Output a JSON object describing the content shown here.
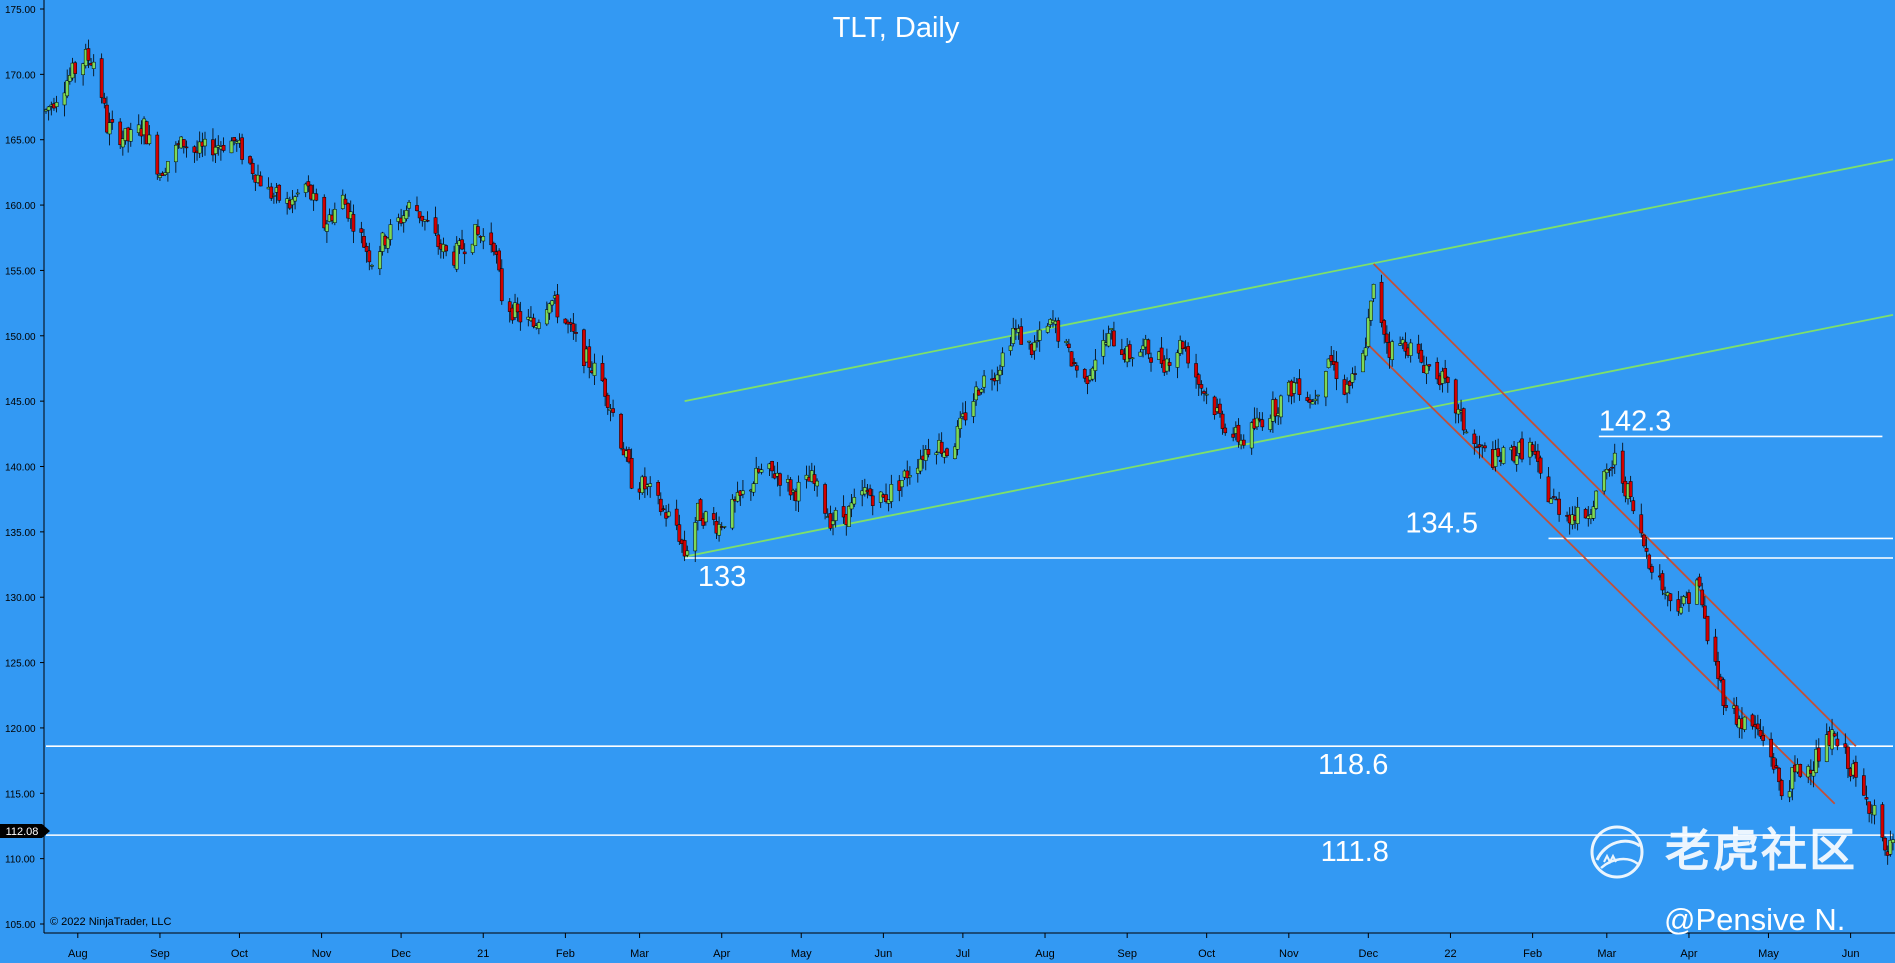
{
  "colors": {
    "background": "#3399f3",
    "axis": "#000000",
    "candle_up": "#7ed957",
    "candle_down": "#d10000",
    "channel_green": "#7ee06a",
    "channel_red": "#c0503a",
    "level_line": "#ffffff"
  },
  "chart_data": {
    "type": "candlestick",
    "title": "TLT, Daily",
    "copyright": "© 2022 NinjaTrader, LLC",
    "watermark": "老虎社区",
    "author": "@Pensive N.",
    "price_tag": "112.08",
    "ylim": [
      105,
      175
    ],
    "y_ticks": [
      "175.00",
      "170.00",
      "165.00",
      "160.00",
      "155.00",
      "150.00",
      "145.00",
      "140.00",
      "135.00",
      "130.00",
      "125.00",
      "120.00",
      "115.00",
      "110.00",
      "105.00"
    ],
    "x_ticks": [
      "Aug",
      "Sep",
      "Oct",
      "Nov",
      "Dec",
      "21",
      "Feb",
      "Mar",
      "Apr",
      "May",
      "Jun",
      "Jul",
      "Aug",
      "Sep",
      "Oct",
      "Nov",
      "Dec",
      "22",
      "Feb",
      "Mar",
      "Apr",
      "May",
      "Jun"
    ],
    "x_start": "2020-07-20",
    "x_end": "2022-06-17",
    "levels": [
      {
        "label": "133",
        "value": 133,
        "from": "2021-03-18",
        "to": "2022-06-17"
      },
      {
        "label": "134.5",
        "value": 134.5,
        "from": "2022-02-07",
        "to": "2022-06-17"
      },
      {
        "label": "142.3",
        "value": 142.3,
        "from": "2022-02-26",
        "to": "2022-06-13"
      },
      {
        "label": "118.6",
        "value": 118.6,
        "from": "2020-07-20",
        "to": "2022-06-17"
      },
      {
        "label": "111.8",
        "value": 111.8,
        "from": "2020-07-20",
        "to": "2022-06-17"
      }
    ],
    "trendlines": [
      {
        "color": "green",
        "from": {
          "date": "2021-03-18",
          "value": 145.0
        },
        "to": {
          "date": "2022-06-17",
          "value": 163.5
        }
      },
      {
        "color": "green",
        "from": {
          "date": "2021-03-18",
          "value": 133.1
        },
        "to": {
          "date": "2022-06-17",
          "value": 151.6
        }
      },
      {
        "color": "red",
        "from": {
          "date": "2021-12-03",
          "value": 155.5
        },
        "to": {
          "date": "2022-06-03",
          "value": 118.6
        }
      },
      {
        "color": "red",
        "from": {
          "date": "2021-11-30",
          "value": 149.5
        },
        "to": {
          "date": "2022-05-26",
          "value": 114.2
        }
      }
    ],
    "price_path": [
      [
        "2020-07-20",
        167.2
      ],
      [
        "2020-07-28",
        169.6
      ],
      [
        "2020-08-04",
        171.3
      ],
      [
        "2020-08-08",
        171.0
      ],
      [
        "2020-08-12",
        166.0
      ],
      [
        "2020-08-20",
        165.0
      ],
      [
        "2020-08-26",
        166.0
      ],
      [
        "2020-09-01",
        162.5
      ],
      [
        "2020-09-05",
        163.8
      ],
      [
        "2020-09-10",
        164.8
      ],
      [
        "2020-09-15",
        164.0
      ],
      [
        "2020-09-22",
        164.6
      ],
      [
        "2020-09-29",
        164.9
      ],
      [
        "2020-10-06",
        162.8
      ],
      [
        "2020-10-12",
        161.0
      ],
      [
        "2020-10-20",
        160.0
      ],
      [
        "2020-10-26",
        161.5
      ],
      [
        "2020-11-02",
        158.5
      ],
      [
        "2020-11-09",
        160.5
      ],
      [
        "2020-11-16",
        157.5
      ],
      [
        "2020-11-20",
        155.8
      ],
      [
        "2020-11-25",
        157.5
      ],
      [
        "2020-12-01",
        159.0
      ],
      [
        "2020-12-05",
        160.2
      ],
      [
        "2020-12-10",
        158.8
      ],
      [
        "2020-12-15",
        157.0
      ],
      [
        "2020-12-20",
        155.8
      ],
      [
        "2020-12-28",
        157.8
      ],
      [
        "2021-01-05",
        157.2
      ],
      [
        "2021-01-08",
        153.0
      ],
      [
        "2021-01-14",
        151.5
      ],
      [
        "2021-01-20",
        150.8
      ],
      [
        "2021-01-26",
        153.0
      ],
      [
        "2021-02-01",
        151.0
      ],
      [
        "2021-02-08",
        148.5
      ],
      [
        "2021-02-15",
        146.5
      ],
      [
        "2021-02-20",
        143.5
      ],
      [
        "2021-02-26",
        139.0
      ],
      [
        "2021-03-04",
        138.3
      ],
      [
        "2021-03-09",
        136.8
      ],
      [
        "2021-03-15",
        135.5
      ],
      [
        "2021-03-18",
        133.3
      ],
      [
        "2021-03-23",
        136.5
      ],
      [
        "2021-03-31",
        135.5
      ],
      [
        "2021-04-08",
        137.5
      ],
      [
        "2021-04-15",
        139.5
      ],
      [
        "2021-04-22",
        139.5
      ],
      [
        "2021-04-28",
        138.0
      ],
      [
        "2021-05-05",
        139.0
      ],
      [
        "2021-05-12",
        136.0
      ],
      [
        "2021-05-18",
        136.3
      ],
      [
        "2021-05-25",
        138.0
      ],
      [
        "2021-06-01",
        137.5
      ],
      [
        "2021-06-08",
        139.0
      ],
      [
        "2021-06-14",
        140.5
      ],
      [
        "2021-06-20",
        142.0
      ],
      [
        "2021-06-26",
        141.0
      ],
      [
        "2021-07-02",
        144.0
      ],
      [
        "2021-07-08",
        146.5
      ],
      [
        "2021-07-14",
        147.5
      ],
      [
        "2021-07-20",
        150.5
      ],
      [
        "2021-07-27",
        149.0
      ],
      [
        "2021-08-04",
        151.0
      ],
      [
        "2021-08-10",
        148.5
      ],
      [
        "2021-08-16",
        146.5
      ],
      [
        "2021-08-20",
        148.5
      ],
      [
        "2021-08-26",
        150.0
      ],
      [
        "2021-09-01",
        148.5
      ],
      [
        "2021-09-08",
        149.0
      ],
      [
        "2021-09-15",
        148.0
      ],
      [
        "2021-09-22",
        149.5
      ],
      [
        "2021-09-28",
        146.5
      ],
      [
        "2021-10-04",
        144.5
      ],
      [
        "2021-10-10",
        142.5
      ],
      [
        "2021-10-15",
        142.0
      ],
      [
        "2021-10-21",
        143.5
      ],
      [
        "2021-10-28",
        144.8
      ],
      [
        "2021-11-04",
        146.5
      ],
      [
        "2021-11-10",
        145.0
      ],
      [
        "2021-11-16",
        148.5
      ],
      [
        "2021-11-22",
        146.0
      ],
      [
        "2021-11-28",
        147.0
      ],
      [
        "2021-12-03",
        153.5
      ],
      [
        "2021-12-09",
        149.0
      ],
      [
        "2021-12-15",
        149.5
      ],
      [
        "2021-12-21",
        148.0
      ],
      [
        "2021-12-28",
        147.0
      ],
      [
        "2022-01-04",
        144.0
      ],
      [
        "2022-01-10",
        141.5
      ],
      [
        "2022-01-18",
        140.5
      ],
      [
        "2022-01-24",
        141.0
      ],
      [
        "2022-01-31",
        141.5
      ],
      [
        "2022-02-06",
        138.0
      ],
      [
        "2022-02-13",
        136.5
      ],
      [
        "2022-02-20",
        136.0
      ],
      [
        "2022-02-27",
        138.5
      ],
      [
        "2022-03-04",
        140.5
      ],
      [
        "2022-03-09",
        138.0
      ],
      [
        "2022-03-14",
        134.5
      ],
      [
        "2022-03-18",
        132.5
      ],
      [
        "2022-03-24",
        130.0
      ],
      [
        "2022-03-30",
        129.5
      ],
      [
        "2022-04-04",
        131.5
      ],
      [
        "2022-04-08",
        127.0
      ],
      [
        "2022-04-14",
        122.5
      ],
      [
        "2022-04-20",
        120.5
      ],
      [
        "2022-04-26",
        120.0
      ],
      [
        "2022-05-02",
        118.0
      ],
      [
        "2022-05-06",
        115.0
      ],
      [
        "2022-05-11",
        116.5
      ],
      [
        "2022-05-16",
        117.0
      ],
      [
        "2022-05-20",
        118.0
      ],
      [
        "2022-05-25",
        119.2
      ],
      [
        "2022-05-31",
        117.5
      ],
      [
        "2022-06-06",
        114.5
      ],
      [
        "2022-06-10",
        114.0
      ],
      [
        "2022-06-14",
        110.0
      ],
      [
        "2022-06-17",
        111.0
      ]
    ]
  }
}
